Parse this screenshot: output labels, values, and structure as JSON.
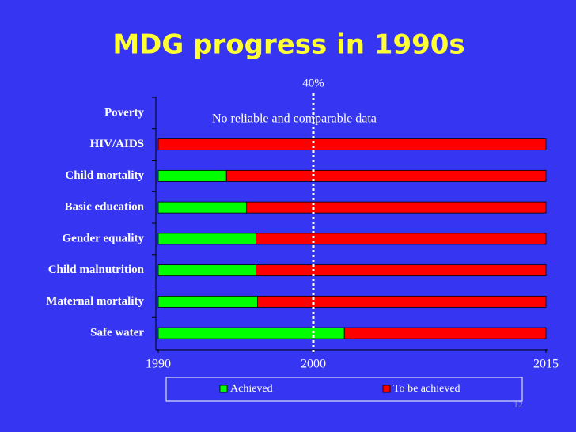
{
  "chart_data": {
    "type": "stacked-bar-horizontal",
    "title": "MDG progress in 1990s",
    "categories": [
      "Poverty",
      "HIV/AIDS",
      "Child mortality",
      "Basic education",
      "Gender equality",
      "Child malnutrition",
      "Maternal mortality",
      "Safe water"
    ],
    "series": [
      {
        "name": "Achieved",
        "color": "#00ff00",
        "values": [
          null,
          0,
          4.4,
          5.7,
          6.3,
          6.3,
          6.4,
          12.0
        ]
      },
      {
        "name": "To be achieved",
        "color": "#ff0000",
        "values": [
          null,
          25,
          20.6,
          19.3,
          18.7,
          18.7,
          18.6,
          13.0
        ]
      }
    ],
    "xlim": [
      0,
      25
    ],
    "xticks": [
      {
        "value": 0,
        "label": "1990"
      },
      {
        "value": 10,
        "label": "2000"
      },
      {
        "value": 25,
        "label": "2015"
      }
    ],
    "reference_line": {
      "value": 10,
      "label": "40%"
    },
    "annotation": "No reliable and comparable data",
    "legend": "bottom",
    "page_number": "12"
  }
}
